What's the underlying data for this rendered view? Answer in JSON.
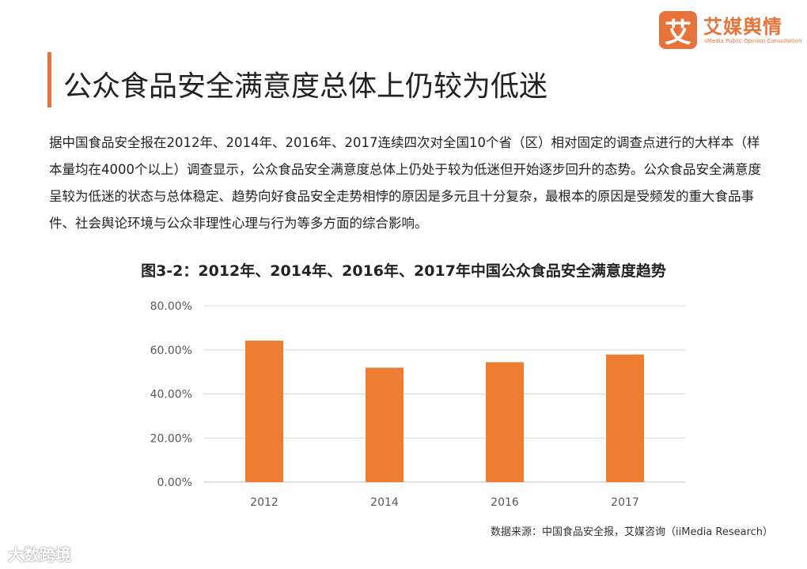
{
  "logo": {
    "mark": "艾",
    "name": "艾媒舆情",
    "subtitle": "iiMedia Public Opinion Consultation"
  },
  "header": {
    "title": "公众食品安全满意度总体上仍较为低迷"
  },
  "intro": "据中国食品安全报在2012年、2014年、2016年、2017连续四次对全国10个省（区）相对固定的调查点进行的大样本（样本量均在4000个以上）调查显示，公众食品安全满意度总体上仍处于较为低迷但开始逐步回升的态势。公众食品安全满意度呈较为低迷的状态与总体稳定、趋势向好食品安全走势相悖的原因是多元且十分复杂，最根本的原因是受频发的重大食品事件、社会舆论环境与公众非理性心理与行为等多方面的综合影响。",
  "chart_data": {
    "type": "bar",
    "title": "图3-2：2012年、2014年、2016年、2017年中国公众食品安全满意度趋势",
    "categories": [
      "2012",
      "2014",
      "2016",
      "2017"
    ],
    "values": [
      64.2,
      51.9,
      54.4,
      57.9
    ],
    "y_ticks": [
      "0.00%",
      "20.00%",
      "40.00%",
      "60.00%",
      "80.00%"
    ],
    "ylim": [
      0,
      80
    ],
    "xlabel": "",
    "ylabel": "",
    "grid": true,
    "bar_color": "#ed7d31"
  },
  "source": "数据来源：中国食品安全报，艾媒咨询（iiMedia  Research）",
  "watermark": "大数跨境"
}
